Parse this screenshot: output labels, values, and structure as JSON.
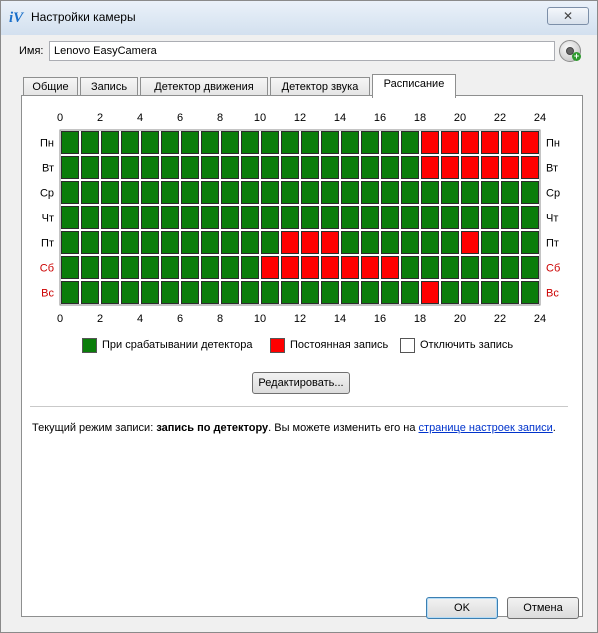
{
  "window": {
    "title": "Настройки камеры",
    "app_icon": "iV",
    "close_glyph": "✕"
  },
  "name_field": {
    "label": "Имя:",
    "value": "Lenovo EasyCamera"
  },
  "tabs": [
    {
      "label": "Общие",
      "active": false
    },
    {
      "label": "Запись",
      "active": false
    },
    {
      "label": "Детектор движения",
      "active": false
    },
    {
      "label": "Детектор звука",
      "active": false
    },
    {
      "label": "Расписание",
      "active": true
    }
  ],
  "schedule": {
    "hour_labels": [
      "0",
      "2",
      "4",
      "6",
      "8",
      "10",
      "12",
      "14",
      "16",
      "18",
      "20",
      "22",
      "24"
    ],
    "days": [
      {
        "label": "Пн",
        "weekend": false,
        "cells": "GGGGGGGGGGGGGGGGGGRRRRRR"
      },
      {
        "label": "Вт",
        "weekend": false,
        "cells": "GGGGGGGGGGGGGGGGGGRRRRRR"
      },
      {
        "label": "Ср",
        "weekend": false,
        "cells": "GGGGGGGGGGGGGGGGGGGGGGGG"
      },
      {
        "label": "Чт",
        "weekend": false,
        "cells": "GGGGGGGGGGGGGGGGGGGGGGGG"
      },
      {
        "label": "Пт",
        "weekend": false,
        "cells": "GGGGGGGGGGGRRRGGGGGGRGGG"
      },
      {
        "label": "Сб",
        "weekend": true,
        "cells": "GGGGGGGGGGRRRRRRRGGGGGGG"
      },
      {
        "label": "Вс",
        "weekend": true,
        "cells": "GGGGGGGGGGGGGGGGGGRGGGGG"
      }
    ],
    "colors": {
      "detector": "#0a7d0a",
      "constant": "#ff0000",
      "off": "#ffffff",
      "weekend_label": "#cc0000"
    }
  },
  "legend": [
    {
      "key": "G",
      "label": "При срабатывании детектора"
    },
    {
      "key": "R",
      "label": "Постоянная запись"
    },
    {
      "key": "W",
      "label": "Отключить запись"
    }
  ],
  "edit_button": "Редактировать...",
  "status": {
    "prefix": "Текущий режим записи: ",
    "mode": "запись по детектору",
    "middle": ". Вы можете изменить его на ",
    "link": "странице настроек записи",
    "suffix": "."
  },
  "buttons": {
    "ok": "OK",
    "cancel": "Отмена"
  }
}
